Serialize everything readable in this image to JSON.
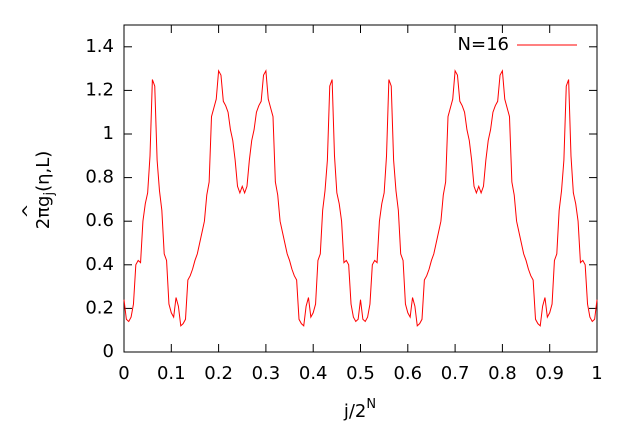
{
  "chart_data": {
    "type": "line",
    "xlabel": {
      "base": "j/2",
      "sup": "N"
    },
    "ylabel": {
      "pre": "2π",
      "hat": "^",
      "g": "g",
      "sub": "j",
      "post": "(η,L)"
    },
    "xlim": [
      0,
      1
    ],
    "xticks": [
      0,
      0.1,
      0.2,
      0.3,
      0.4,
      0.5,
      0.6,
      0.7,
      0.8,
      0.9,
      1
    ],
    "ylim": [
      0,
      1.5
    ],
    "yticks": [
      0,
      0.2,
      0.4,
      0.6,
      0.8,
      1,
      1.2,
      1.4
    ],
    "grid": false,
    "legend": "top-right",
    "x": [
      0,
      0.005,
      0.01,
      0.015,
      0.02,
      0.025,
      0.03,
      0.035,
      0.04,
      0.045,
      0.05,
      0.055,
      0.06,
      0.065,
      0.07,
      0.075,
      0.08,
      0.085,
      0.09,
      0.095,
      0.1,
      0.105,
      0.11,
      0.115,
      0.12,
      0.125,
      0.13,
      0.135,
      0.14,
      0.145,
      0.15,
      0.155,
      0.16,
      0.165,
      0.17,
      0.175,
      0.18,
      0.185,
      0.19,
      0.195,
      0.2,
      0.205,
      0.21,
      0.215,
      0.22,
      0.225,
      0.23,
      0.235,
      0.24,
      0.245,
      0.25,
      0.255,
      0.26,
      0.265,
      0.27,
      0.275,
      0.28,
      0.285,
      0.29,
      0.295,
      0.3,
      0.305,
      0.31,
      0.315,
      0.32,
      0.325,
      0.33,
      0.335,
      0.34,
      0.345,
      0.35,
      0.355,
      0.36,
      0.365,
      0.37,
      0.375,
      0.38,
      0.385,
      0.39,
      0.395,
      0.4,
      0.405,
      0.41,
      0.415,
      0.42,
      0.425,
      0.43,
      0.435,
      0.44,
      0.445,
      0.45,
      0.455,
      0.46,
      0.465,
      0.47,
      0.475,
      0.48,
      0.485,
      0.49,
      0.495,
      0.5,
      0.505,
      0.51,
      0.515,
      0.52,
      0.525,
      0.53,
      0.535,
      0.54,
      0.545,
      0.55,
      0.555,
      0.56,
      0.565,
      0.57,
      0.575,
      0.58,
      0.585,
      0.59,
      0.595,
      0.6,
      0.605,
      0.61,
      0.615,
      0.62,
      0.625,
      0.63,
      0.635,
      0.64,
      0.645,
      0.65,
      0.655,
      0.66,
      0.665,
      0.67,
      0.675,
      0.68,
      0.685,
      0.69,
      0.695,
      0.7,
      0.705,
      0.71,
      0.715,
      0.72,
      0.725,
      0.73,
      0.735,
      0.74,
      0.745,
      0.75,
      0.755,
      0.76,
      0.765,
      0.77,
      0.775,
      0.78,
      0.785,
      0.79,
      0.795,
      0.8,
      0.805,
      0.81,
      0.815,
      0.82,
      0.825,
      0.83,
      0.835,
      0.84,
      0.845,
      0.85,
      0.855,
      0.86,
      0.865,
      0.87,
      0.875,
      0.88,
      0.885,
      0.89,
      0.895,
      0.9,
      0.905,
      0.91,
      0.915,
      0.92,
      0.925,
      0.93,
      0.935,
      0.94,
      0.945,
      0.95,
      0.955,
      0.96,
      0.965,
      0.97,
      0.975,
      0.98,
      0.985,
      0.99,
      0.995,
      1
    ],
    "series": [
      {
        "name": "N=16",
        "color": "#ff0000",
        "values": [
          0.24,
          0.15,
          0.14,
          0.16,
          0.22,
          0.4,
          0.42,
          0.41,
          0.6,
          0.68,
          0.73,
          0.9,
          1.25,
          1.22,
          0.88,
          0.74,
          0.65,
          0.45,
          0.42,
          0.22,
          0.18,
          0.16,
          0.25,
          0.21,
          0.12,
          0.13,
          0.15,
          0.33,
          0.35,
          0.38,
          0.42,
          0.45,
          0.5,
          0.55,
          0.6,
          0.72,
          0.78,
          1.08,
          1.12,
          1.16,
          1.29,
          1.27,
          1.15,
          1.13,
          1.1,
          1.02,
          0.97,
          0.88,
          0.76,
          0.73,
          0.76,
          0.73,
          0.76,
          0.88,
          0.97,
          1.02,
          1.1,
          1.13,
          1.15,
          1.27,
          1.29,
          1.16,
          1.12,
          1.08,
          0.78,
          0.72,
          0.6,
          0.55,
          0.5,
          0.45,
          0.42,
          0.38,
          0.35,
          0.33,
          0.15,
          0.13,
          0.12,
          0.21,
          0.25,
          0.16,
          0.18,
          0.22,
          0.42,
          0.45,
          0.65,
          0.74,
          0.88,
          1.22,
          1.25,
          0.9,
          0.73,
          0.68,
          0.6,
          0.41,
          0.42,
          0.4,
          0.22,
          0.16,
          0.14,
          0.15,
          0.24,
          0.15,
          0.14,
          0.16,
          0.22,
          0.4,
          0.42,
          0.41,
          0.6,
          0.68,
          0.73,
          0.9,
          1.25,
          1.22,
          0.88,
          0.74,
          0.65,
          0.45,
          0.42,
          0.22,
          0.18,
          0.16,
          0.25,
          0.21,
          0.12,
          0.13,
          0.15,
          0.33,
          0.35,
          0.38,
          0.42,
          0.45,
          0.5,
          0.55,
          0.6,
          0.72,
          0.78,
          1.08,
          1.12,
          1.16,
          1.29,
          1.27,
          1.15,
          1.13,
          1.1,
          1.02,
          0.97,
          0.88,
          0.76,
          0.73,
          0.76,
          0.73,
          0.76,
          0.88,
          0.97,
          1.02,
          1.1,
          1.13,
          1.15,
          1.27,
          1.29,
          1.16,
          1.12,
          1.08,
          0.78,
          0.72,
          0.6,
          0.55,
          0.5,
          0.45,
          0.42,
          0.38,
          0.35,
          0.33,
          0.15,
          0.13,
          0.12,
          0.21,
          0.25,
          0.16,
          0.18,
          0.22,
          0.42,
          0.45,
          0.65,
          0.74,
          0.88,
          1.22,
          1.25,
          0.9,
          0.73,
          0.68,
          0.6,
          0.41,
          0.42,
          0.4,
          0.22,
          0.16,
          0.14,
          0.15,
          0.24
        ]
      }
    ]
  }
}
